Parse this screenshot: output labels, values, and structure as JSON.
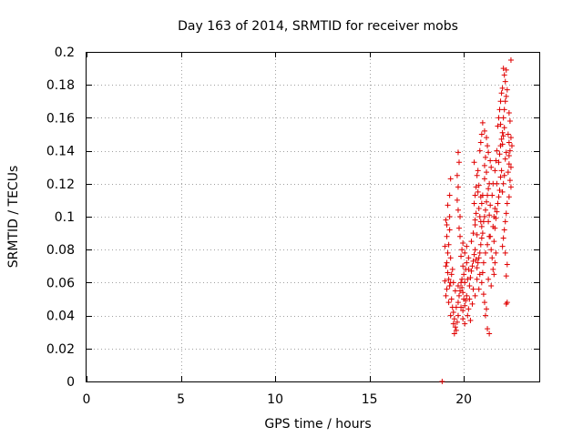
{
  "chart_data": {
    "type": "scatter",
    "title": "Day 163 of 2014, SRMTID for receiver mobs",
    "xlabel": "GPS time / hours",
    "ylabel": "SRMTID / TECUs",
    "xlim": [
      0,
      24
    ],
    "ylim": [
      0,
      0.2
    ],
    "x_ticks": [
      "0",
      "5",
      "10",
      "15",
      "20"
    ],
    "x_tick_values": [
      0,
      5,
      10,
      15,
      20
    ],
    "y_ticks": [
      "0",
      "0.02",
      "0.04",
      "0.06",
      "0.08",
      "0.1",
      "0.12",
      "0.14",
      "0.16",
      "0.18",
      "0.2"
    ],
    "y_tick_values": [
      0,
      0.02,
      0.04,
      0.06,
      0.08,
      0.1,
      0.12,
      0.14,
      0.16,
      0.18,
      0.2
    ],
    "grid": true,
    "marker": "+",
    "color": "#e00000",
    "series": [
      {
        "name": "SRMTID",
        "points": [
          [
            18.85,
            0.0
          ],
          [
            19.05,
            0.098
          ],
          [
            19.1,
            0.095
          ],
          [
            19.1,
            0.088
          ],
          [
            19.15,
            0.078
          ],
          [
            19.1,
            0.072
          ],
          [
            19.2,
            0.083
          ],
          [
            19.25,
            0.1
          ],
          [
            19.15,
            0.107
          ],
          [
            19.25,
            0.113
          ],
          [
            19.3,
            0.123
          ],
          [
            19.15,
            0.066
          ],
          [
            19.2,
            0.062
          ],
          [
            19.25,
            0.058
          ],
          [
            19.3,
            0.06
          ],
          [
            19.35,
            0.065
          ],
          [
            19.05,
            0.052
          ],
          [
            19.2,
            0.048
          ],
          [
            19.35,
            0.05
          ],
          [
            19.4,
            0.045
          ],
          [
            19.45,
            0.042
          ],
          [
            19.3,
            0.04
          ],
          [
            19.5,
            0.038
          ],
          [
            19.45,
            0.035
          ],
          [
            19.55,
            0.033
          ],
          [
            19.6,
            0.031
          ],
          [
            19.5,
            0.029
          ],
          [
            19.65,
            0.036
          ],
          [
            19.7,
            0.04
          ],
          [
            19.6,
            0.045
          ],
          [
            19.7,
            0.048
          ],
          [
            19.75,
            0.052
          ],
          [
            19.8,
            0.055
          ],
          [
            19.7,
            0.058
          ],
          [
            19.85,
            0.06
          ],
          [
            19.9,
            0.057
          ],
          [
            19.95,
            0.054
          ],
          [
            20.0,
            0.05
          ],
          [
            19.85,
            0.045
          ],
          [
            19.95,
            0.043
          ],
          [
            20.05,
            0.046
          ],
          [
            20.1,
            0.049
          ],
          [
            20.15,
            0.052
          ],
          [
            20.05,
            0.06
          ],
          [
            20.2,
            0.062
          ],
          [
            20.0,
            0.065
          ],
          [
            20.1,
            0.068
          ],
          [
            19.95,
            0.07
          ],
          [
            20.15,
            0.072
          ],
          [
            20.25,
            0.075
          ],
          [
            19.9,
            0.08
          ],
          [
            19.8,
            0.088
          ],
          [
            19.75,
            0.093
          ],
          [
            19.8,
            0.1
          ],
          [
            19.7,
            0.104
          ],
          [
            19.65,
            0.11
          ],
          [
            19.7,
            0.118
          ],
          [
            19.65,
            0.125
          ],
          [
            19.75,
            0.133
          ],
          [
            19.7,
            0.139
          ],
          [
            19.9,
            0.062
          ],
          [
            20.3,
            0.058
          ],
          [
            20.35,
            0.063
          ],
          [
            20.4,
            0.067
          ],
          [
            20.45,
            0.07
          ],
          [
            20.5,
            0.073
          ],
          [
            20.55,
            0.077
          ],
          [
            20.6,
            0.08
          ],
          [
            20.65,
            0.074
          ],
          [
            20.7,
            0.069
          ],
          [
            20.75,
            0.072
          ],
          [
            20.8,
            0.075
          ],
          [
            20.85,
            0.078
          ],
          [
            20.9,
            0.083
          ],
          [
            20.95,
            0.087
          ],
          [
            20.4,
            0.085
          ],
          [
            20.5,
            0.09
          ],
          [
            20.6,
            0.095
          ],
          [
            20.7,
            0.089
          ],
          [
            20.3,
            0.05
          ],
          [
            20.45,
            0.047
          ],
          [
            20.6,
            0.052
          ],
          [
            20.8,
            0.056
          ],
          [
            20.95,
            0.06
          ],
          [
            21.05,
            0.053
          ],
          [
            21.1,
            0.048
          ],
          [
            21.2,
            0.044
          ],
          [
            21.15,
            0.04
          ],
          [
            21.25,
            0.032
          ],
          [
            21.35,
            0.029
          ],
          [
            21.3,
            0.062
          ],
          [
            20.55,
            0.108
          ],
          [
            20.6,
            0.113
          ],
          [
            20.65,
            0.118
          ],
          [
            20.7,
            0.125
          ],
          [
            20.75,
            0.128
          ],
          [
            20.55,
            0.133
          ],
          [
            20.8,
            0.105
          ],
          [
            20.85,
            0.1
          ],
          [
            20.9,
            0.097
          ],
          [
            20.95,
            0.094
          ],
          [
            21.0,
            0.09
          ],
          [
            21.05,
            0.097
          ],
          [
            21.1,
            0.1
          ],
          [
            21.15,
            0.104
          ],
          [
            21.2,
            0.109
          ],
          [
            21.25,
            0.113
          ],
          [
            21.3,
            0.117
          ],
          [
            21.35,
            0.12
          ],
          [
            21.1,
            0.123
          ],
          [
            21.2,
            0.127
          ],
          [
            20.85,
            0.14
          ],
          [
            20.9,
            0.145
          ],
          [
            20.95,
            0.15
          ],
          [
            21.0,
            0.157
          ],
          [
            21.1,
            0.152
          ],
          [
            21.2,
            0.148
          ],
          [
            21.25,
            0.143
          ],
          [
            21.3,
            0.139
          ],
          [
            21.4,
            0.134
          ],
          [
            21.45,
            0.13
          ],
          [
            21.4,
            0.088
          ],
          [
            21.45,
            0.08
          ],
          [
            21.5,
            0.075
          ],
          [
            21.55,
            0.068
          ],
          [
            21.6,
            0.065
          ],
          [
            21.45,
            0.058
          ],
          [
            21.65,
            0.072
          ],
          [
            21.7,
            0.078
          ],
          [
            21.6,
            0.085
          ],
          [
            21.65,
            0.093
          ],
          [
            21.7,
            0.099
          ],
          [
            21.75,
            0.103
          ],
          [
            21.8,
            0.108
          ],
          [
            21.85,
            0.112
          ],
          [
            21.9,
            0.116
          ],
          [
            21.75,
            0.12
          ],
          [
            21.95,
            0.124
          ],
          [
            22.0,
            0.128
          ],
          [
            21.85,
            0.133
          ],
          [
            21.9,
            0.138
          ],
          [
            21.95,
            0.143
          ],
          [
            22.0,
            0.147
          ],
          [
            22.05,
            0.151
          ],
          [
            21.8,
            0.155
          ],
          [
            21.85,
            0.16
          ],
          [
            21.9,
            0.165
          ],
          [
            21.95,
            0.17
          ],
          [
            22.0,
            0.175
          ],
          [
            22.05,
            0.178
          ],
          [
            21.95,
            0.156
          ],
          [
            22.1,
            0.16
          ],
          [
            22.15,
            0.165
          ],
          [
            22.2,
            0.17
          ],
          [
            22.25,
            0.173
          ],
          [
            22.3,
            0.177
          ],
          [
            22.2,
            0.182
          ],
          [
            22.15,
            0.186
          ],
          [
            22.1,
            0.19
          ],
          [
            22.25,
            0.189
          ],
          [
            22.5,
            0.195
          ],
          [
            22.35,
            0.15
          ],
          [
            22.4,
            0.145
          ],
          [
            22.45,
            0.14
          ],
          [
            22.4,
            0.132
          ],
          [
            22.35,
            0.127
          ],
          [
            22.45,
            0.122
          ],
          [
            22.5,
            0.118
          ],
          [
            22.4,
            0.112
          ],
          [
            22.3,
            0.108
          ],
          [
            22.25,
            0.102
          ],
          [
            22.2,
            0.097
          ],
          [
            22.15,
            0.092
          ],
          [
            22.1,
            0.087
          ],
          [
            22.05,
            0.082
          ],
          [
            22.2,
            0.078
          ],
          [
            22.3,
            0.071
          ],
          [
            22.25,
            0.064
          ],
          [
            22.3,
            0.048
          ],
          [
            22.25,
            0.047
          ],
          [
            22.4,
            0.163
          ],
          [
            22.45,
            0.158
          ],
          [
            22.5,
            0.148
          ],
          [
            22.55,
            0.143
          ],
          [
            22.4,
            0.137
          ],
          [
            22.5,
            0.13
          ],
          [
            21.55,
            0.12
          ],
          [
            21.5,
            0.113
          ],
          [
            21.4,
            0.107
          ],
          [
            21.35,
            0.101
          ],
          [
            21.3,
            0.097
          ],
          [
            20.2,
            0.04
          ],
          [
            20.25,
            0.044
          ],
          [
            20.35,
            0.037
          ],
          [
            19.95,
            0.038
          ],
          [
            20.05,
            0.035
          ],
          [
            19.55,
            0.055
          ],
          [
            19.45,
            0.06
          ],
          [
            19.4,
            0.068
          ],
          [
            19.3,
            0.075
          ],
          [
            19.25,
            0.092
          ],
          [
            19.0,
            0.082
          ],
          [
            19.05,
            0.07
          ],
          [
            19.0,
            0.061
          ],
          [
            19.1,
            0.056
          ],
          [
            20.7,
            0.062
          ],
          [
            20.85,
            0.065
          ],
          [
            20.5,
            0.056
          ],
          [
            21.0,
            0.066
          ],
          [
            21.05,
            0.072
          ],
          [
            21.15,
            0.078
          ],
          [
            21.25,
            0.083
          ],
          [
            21.35,
            0.088
          ],
          [
            21.55,
            0.094
          ],
          [
            21.6,
            0.1
          ],
          [
            21.65,
            0.105
          ],
          [
            22.05,
            0.115
          ],
          [
            22.1,
            0.12
          ],
          [
            22.15,
            0.125
          ],
          [
            22.2,
            0.135
          ],
          [
            22.25,
            0.139
          ],
          [
            22.05,
            0.144
          ],
          [
            22.1,
            0.149
          ],
          [
            22.15,
            0.154
          ],
          [
            21.75,
            0.14
          ],
          [
            21.7,
            0.134
          ],
          [
            21.65,
            0.128
          ],
          [
            20.75,
            0.115
          ],
          [
            20.8,
            0.119
          ],
          [
            20.9,
            0.112
          ],
          [
            20.95,
            0.108
          ],
          [
            21.0,
            0.113
          ],
          [
            21.1,
            0.131
          ],
          [
            21.15,
            0.136
          ],
          [
            20.65,
            0.102
          ],
          [
            20.6,
            0.098
          ],
          [
            19.85,
            0.076
          ],
          [
            19.95,
            0.084
          ],
          [
            20.05,
            0.078
          ],
          [
            20.15,
            0.082
          ],
          [
            20.25,
            0.068
          ]
        ]
      }
    ]
  }
}
